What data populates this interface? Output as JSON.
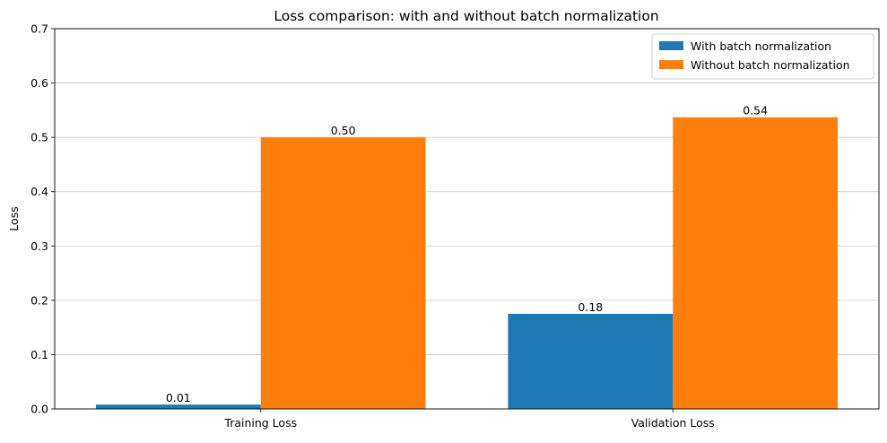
{
  "chart_data": {
    "type": "bar",
    "title": "Loss comparison: with and without batch normalization",
    "xlabel": "",
    "ylabel": "Loss",
    "categories": [
      "Training Loss",
      "Validation Loss"
    ],
    "series": [
      {
        "name": "With batch normalization",
        "color": "#1f77b4",
        "values": [
          0.008,
          0.175
        ],
        "labels": [
          "0.01",
          "0.18"
        ]
      },
      {
        "name": "Without batch normalization",
        "color": "#ff7f0e",
        "values": [
          0.5,
          0.537
        ],
        "labels": [
          "0.50",
          "0.54"
        ]
      }
    ],
    "ylim": [
      0,
      0.7
    ],
    "yticks": [
      0.0,
      0.1,
      0.2,
      0.3,
      0.4,
      0.5,
      0.6,
      0.7
    ],
    "ytick_labels": [
      "0.0",
      "0.1",
      "0.2",
      "0.3",
      "0.4",
      "0.5",
      "0.6",
      "0.7"
    ],
    "grid": "y",
    "legend_position": "top-right"
  }
}
